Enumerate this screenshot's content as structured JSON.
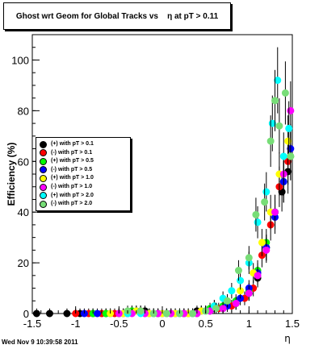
{
  "footer": {
    "date": "Wed Nov  9 10:39:58 2011"
  },
  "chart_data": {
    "type": "scatter",
    "title": "Ghost wrt Geom for Global Tracks vs    η at pT > 0.11",
    "xlabel": "η",
    "ylabel": "Efficiency (%)",
    "xlim": [
      -1.5,
      1.5
    ],
    "ylim": [
      0,
      110
    ],
    "xticks": [
      "-1.5",
      "-1",
      "-0.5",
      "0",
      "0.5",
      "1",
      "1.5"
    ],
    "yticks": [
      "0",
      "20",
      "40",
      "60",
      "80",
      "100"
    ],
    "legend_position": "middle-left",
    "series": [
      {
        "name": "(+) with pT > 0.1",
        "color": "#000000",
        "x": [
          -1.45,
          -1.3,
          -1.1,
          -0.95,
          -0.8,
          -0.65,
          -0.5,
          -0.35,
          -0.2,
          -0.05,
          0.1,
          0.25,
          0.4,
          0.55,
          0.7,
          0.85,
          1.0,
          1.1,
          1.2,
          1.3,
          1.38,
          1.45
        ],
        "y": [
          0,
          0,
          0,
          0,
          0,
          0,
          0,
          1,
          1,
          0,
          0,
          0,
          1,
          1,
          2,
          4,
          8,
          14,
          26,
          40,
          48,
          56
        ]
      },
      {
        "name": "(-) with pT > 0.1",
        "color": "#ff0000",
        "x": [
          -1.0,
          -0.85,
          -0.7,
          -0.55,
          -0.4,
          -0.25,
          -0.1,
          0.05,
          0.2,
          0.35,
          0.5,
          0.65,
          0.8,
          0.95,
          1.05,
          1.15,
          1.25,
          1.35,
          1.45
        ],
        "y": [
          0,
          0,
          0,
          0,
          0,
          1,
          0,
          0,
          0,
          0,
          1,
          2,
          3,
          6,
          10,
          23,
          35,
          50,
          60
        ]
      },
      {
        "name": "(+) with pT > 0.5",
        "color": "#00ff00",
        "x": [
          -0.8,
          -0.65,
          -0.5,
          -0.35,
          -0.2,
          -0.05,
          0.1,
          0.25,
          0.4,
          0.55,
          0.7,
          0.85,
          1.0,
          1.1,
          1.2,
          1.3,
          1.4,
          1.48
        ],
        "y": [
          0,
          0,
          0,
          1,
          0,
          0,
          0,
          0,
          0,
          2,
          3,
          5,
          9,
          17,
          28,
          40,
          52,
          62
        ]
      },
      {
        "name": "(-) with pT > 0.5",
        "color": "#0000ff",
        "x": [
          -0.9,
          -0.75,
          -0.6,
          -0.45,
          -0.3,
          -0.15,
          0.0,
          0.15,
          0.3,
          0.45,
          0.6,
          0.75,
          0.9,
          1.0,
          1.1,
          1.2,
          1.3,
          1.4,
          1.48
        ],
        "y": [
          0,
          0,
          0,
          0,
          1,
          0,
          0,
          0,
          0,
          1,
          2,
          3,
          6,
          10,
          16,
          26,
          38,
          52,
          65
        ]
      },
      {
        "name": "(+) with pT > 1.0",
        "color": "#ffff00",
        "x": [
          -0.6,
          -0.45,
          -0.3,
          -0.15,
          0.0,
          0.15,
          0.3,
          0.45,
          0.6,
          0.75,
          0.9,
          1.05,
          1.15,
          1.25,
          1.35,
          1.45
        ],
        "y": [
          0,
          0,
          1,
          0,
          0,
          0,
          0,
          1,
          3,
          5,
          9,
          16,
          28,
          40,
          55,
          68
        ]
      },
      {
        "name": "(-) with pT > 1.0",
        "color": "#ff00ff",
        "x": [
          -0.5,
          -0.35,
          -0.2,
          -0.05,
          0.1,
          0.25,
          0.4,
          0.55,
          0.7,
          0.85,
          1.0,
          1.1,
          1.2,
          1.3,
          1.4,
          1.48
        ],
        "y": [
          0,
          0,
          0,
          0,
          0,
          0,
          0,
          1,
          2,
          4,
          8,
          15,
          25,
          40,
          55,
          80
        ]
      },
      {
        "name": "(+) with pT > 2.0",
        "color": "#00ffff",
        "x": [
          -0.4,
          -0.25,
          -0.1,
          0.05,
          0.2,
          0.35,
          0.5,
          0.6,
          0.7,
          0.8,
          0.9,
          1.0,
          1.1,
          1.2,
          1.27,
          1.33,
          1.4,
          1.46
        ],
        "y": [
          0,
          0,
          0,
          0,
          0,
          0,
          1,
          3,
          6,
          9,
          13,
          20,
          36,
          48,
          75,
          92,
          62,
          73
        ]
      },
      {
        "name": "(-) with pT > 2.0",
        "color": "#77dd77",
        "x": [
          -0.4,
          -0.25,
          -0.1,
          0.05,
          0.2,
          0.35,
          0.5,
          0.62,
          0.75,
          0.88,
          1.0,
          1.08,
          1.18,
          1.25,
          1.3,
          1.35,
          1.42,
          1.48
        ],
        "y": [
          1,
          1,
          0,
          0,
          0,
          0,
          1,
          2,
          5,
          17,
          22,
          39,
          44,
          68,
          84,
          74,
          87,
          62
        ]
      }
    ]
  }
}
